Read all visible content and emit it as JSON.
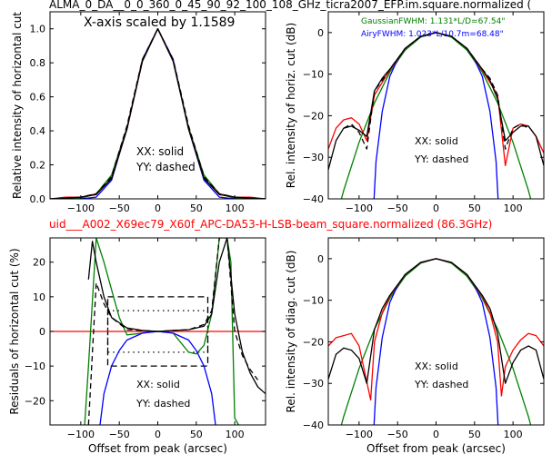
{
  "figure": {
    "top_title": "ALMA_0_DA__0_0_360_0_45_90_92_100_108_GHz_ticra2007_EFP.im.square.normalized (",
    "mid_title": "uid___A002_X69ec79_X60f_APC-DA53-H-LSB-beam_square.normalized (86.3GHz)",
    "mid_title_color": "#ff0000"
  },
  "chart_data": [
    {
      "type": "line",
      "panel": "top-left",
      "xlabel": "",
      "ylabel": "Relative intensity of horizontal cut",
      "xlim": [
        -140,
        140
      ],
      "ylim": [
        0,
        1.1
      ],
      "xticks": [
        -100,
        -50,
        0,
        50,
        100
      ],
      "yticks": [
        0.0,
        0.2,
        0.4,
        0.6,
        0.8,
        1.0
      ],
      "annotations": [
        "X-axis scaled by 1.1589",
        "XX: solid",
        "YY: dashed"
      ],
      "series": [
        {
          "color": "#008000",
          "style": "solid",
          "x": [
            -140,
            -120,
            -100,
            -80,
            -60,
            -40,
            -20,
            0,
            20,
            40,
            60,
            80,
            100,
            120,
            140
          ],
          "y": [
            0.0,
            0.0,
            0.003,
            0.03,
            0.14,
            0.42,
            0.81,
            1.0,
            0.81,
            0.42,
            0.14,
            0.03,
            0.003,
            0.0,
            0.0
          ]
        },
        {
          "color": "#0000ff",
          "style": "solid",
          "x": [
            -140,
            -120,
            -100,
            -80,
            -60,
            -40,
            -20,
            0,
            20,
            40,
            60,
            80,
            100,
            120,
            140
          ],
          "y": [
            0.0,
            0.0,
            0.0,
            0.01,
            0.11,
            0.41,
            0.82,
            1.0,
            0.82,
            0.41,
            0.11,
            0.01,
            0.0,
            0.0,
            0.0
          ]
        },
        {
          "color": "#ff0000",
          "style": "solid",
          "x": [
            -140,
            -120,
            -100,
            -80,
            -60,
            -40,
            -20,
            0,
            20,
            40,
            60,
            80,
            100,
            120,
            140
          ],
          "y": [
            0.0,
            0.01,
            0.01,
            0.03,
            0.12,
            0.41,
            0.81,
            1.0,
            0.81,
            0.41,
            0.12,
            0.03,
            0.01,
            0.01,
            0.0
          ]
        },
        {
          "color": "#000000",
          "style": "solid",
          "x": [
            -140,
            -120,
            -100,
            -80,
            -60,
            -40,
            -20,
            0,
            20,
            40,
            60,
            80,
            100,
            120,
            140
          ],
          "y": [
            0.0,
            0.005,
            0.01,
            0.025,
            0.12,
            0.41,
            0.81,
            1.0,
            0.81,
            0.41,
            0.12,
            0.025,
            0.01,
            0.005,
            0.0
          ]
        },
        {
          "color": "#000000",
          "style": "dashed",
          "x": [
            -140,
            -120,
            -100,
            -80,
            -60,
            -40,
            -20,
            0,
            20,
            40,
            60,
            80,
            100,
            120,
            140
          ],
          "y": [
            0.0,
            0.005,
            0.01,
            0.03,
            0.13,
            0.43,
            0.82,
            1.0,
            0.82,
            0.43,
            0.13,
            0.03,
            0.01,
            0.005,
            0.0
          ]
        }
      ]
    },
    {
      "type": "line",
      "panel": "top-right",
      "xlabel": "",
      "ylabel": "Rel. intensity of horiz. cut (dB)",
      "xlim": [
        -140,
        140
      ],
      "ylim": [
        -40,
        5
      ],
      "xticks": [
        -100,
        -50,
        0,
        50,
        100
      ],
      "yticks": [
        0,
        -10,
        -20,
        -30,
        -40
      ],
      "annotations": [
        "XX: solid",
        "YY: dashed"
      ],
      "legend": [
        {
          "text": "GaussianFWHM: 1.131*L/D=67.54\"",
          "color": "#008000"
        },
        {
          "text": "AiryFWHM: 1.023*L/10.7m=68.48\"",
          "color": "#0000ff"
        }
      ],
      "series": [
        {
          "color": "#008000",
          "style": "solid",
          "x": [
            -140,
            -120,
            -100,
            -80,
            -60,
            -40,
            -20,
            0,
            20,
            40,
            60,
            80,
            100,
            120,
            140
          ],
          "y": [
            -51.7,
            -38,
            -26.4,
            -16.9,
            -9.5,
            -4.2,
            -1.1,
            0,
            -1.1,
            -4.2,
            -9.5,
            -16.9,
            -26.4,
            -38,
            -51.7
          ]
        },
        {
          "color": "#0000ff",
          "style": "solid",
          "x": [
            -82,
            -78,
            -70,
            -60,
            -50,
            -40,
            -20,
            0,
            20,
            40,
            50,
            60,
            70,
            78,
            82
          ],
          "y": [
            -45,
            -31,
            -19,
            -10.5,
            -6.5,
            -3.8,
            -0.9,
            0,
            -0.9,
            -3.8,
            -6.5,
            -10.5,
            -19,
            -31,
            -45
          ]
        },
        {
          "color": "#ff0000",
          "style": "solid",
          "x": [
            -140,
            -130,
            -120,
            -110,
            -100,
            -90,
            -80,
            -70,
            -60,
            -40,
            -20,
            0,
            20,
            40,
            60,
            70,
            80,
            90,
            100,
            110,
            120,
            130,
            140
          ],
          "y": [
            -28,
            -23,
            -21,
            -20.5,
            -22,
            -26,
            -15,
            -12,
            -9,
            -3.8,
            -0.9,
            0,
            -0.9,
            -3.8,
            -9,
            -12,
            -15,
            -32,
            -23,
            -22,
            -22.5,
            -25,
            -29
          ]
        },
        {
          "color": "#000000",
          "style": "solid",
          "x": [
            -140,
            -130,
            -120,
            -110,
            -100,
            -90,
            -80,
            -70,
            -60,
            -40,
            -20,
            0,
            20,
            40,
            60,
            70,
            80,
            90,
            100,
            110,
            120,
            130,
            140
          ],
          "y": [
            -33,
            -26,
            -23,
            -22.5,
            -23.5,
            -25,
            -14,
            -11,
            -8.8,
            -3.8,
            -0.9,
            0,
            -0.9,
            -3.8,
            -8.8,
            -11.5,
            -16,
            -26,
            -24,
            -22.5,
            -22.5,
            -25,
            -32
          ]
        },
        {
          "color": "#000000",
          "style": "dashed",
          "x": [
            -120,
            -110,
            -100,
            -90,
            -80,
            -70,
            -60,
            -40,
            -20,
            0,
            20,
            40,
            60,
            70,
            80,
            90,
            100,
            110,
            120
          ],
          "y": [
            -23,
            -22,
            -24,
            -28,
            -14,
            -11.5,
            -8.8,
            -3.8,
            -0.9,
            0,
            -0.9,
            -3.8,
            -8.8,
            -11,
            -15,
            -28,
            -23,
            -22,
            -23
          ]
        }
      ]
    },
    {
      "type": "line",
      "panel": "bottom-left",
      "xlabel": "Offset from peak (arcsec)",
      "ylabel": "Residuals of horizontal cut (%)",
      "xlim": [
        -140,
        140
      ],
      "ylim": [
        -27,
        27
      ],
      "xticks": [
        -100,
        -50,
        0,
        50,
        100
      ],
      "yticks": [
        20,
        10,
        0,
        -10,
        -20
      ],
      "annotations": [
        "XX: solid",
        "YY: dashed"
      ],
      "series": [
        {
          "color": "#ff0000",
          "style": "solid",
          "x": [
            -140,
            140
          ],
          "y": [
            0,
            0
          ]
        },
        {
          "color": "#008000",
          "style": "solid",
          "x": [
            -95,
            -90,
            -80,
            -70,
            -60,
            -50,
            -40,
            -20,
            0,
            20,
            40,
            50,
            60,
            70,
            80,
            90,
            95,
            100,
            105
          ],
          "y": [
            -27,
            -10,
            27,
            20,
            12,
            4,
            -1,
            -0.5,
            0,
            -0.5,
            -6,
            -6.5,
            -4,
            5,
            27,
            27,
            20,
            -25,
            -27
          ]
        },
        {
          "color": "#0000ff",
          "style": "solid",
          "x": [
            -75,
            -70,
            -60,
            -50,
            -40,
            -20,
            0,
            20,
            40,
            50,
            60,
            70,
            75
          ],
          "y": [
            -27,
            -18,
            -10,
            -5.5,
            -2.5,
            -0.5,
            0,
            -0.5,
            -2.5,
            -5.5,
            -10,
            -18,
            -27
          ]
        },
        {
          "color": "#000000",
          "style": "solid",
          "x": [
            -90,
            -85,
            -80,
            -70,
            -60,
            -40,
            -20,
            0,
            20,
            40,
            60,
            70,
            80,
            90,
            100,
            110,
            120,
            130,
            140
          ],
          "y": [
            15,
            26,
            20,
            10,
            4,
            1,
            0.3,
            0,
            0.3,
            0.5,
            1.5,
            5,
            20,
            27,
            5,
            -6,
            -12,
            -16,
            -18
          ]
        },
        {
          "color": "#000000",
          "style": "dashed",
          "x": [
            -90,
            -80,
            -70,
            -60,
            -40,
            -20,
            0,
            20,
            40,
            60,
            70,
            80,
            90,
            100,
            110,
            120,
            130
          ],
          "y": [
            -27,
            14,
            8,
            4,
            0.5,
            0.3,
            0,
            0.3,
            0.5,
            2,
            6,
            27,
            27,
            0,
            -7,
            -11,
            -14
          ]
        }
      ]
    },
    {
      "type": "line",
      "panel": "bottom-right",
      "xlabel": "Offset from peak (arcsec)",
      "ylabel": "Rel. intensity of diag. cut (dB)",
      "xlim": [
        -140,
        140
      ],
      "ylim": [
        -40,
        5
      ],
      "xticks": [
        -100,
        -50,
        0,
        50,
        100
      ],
      "yticks": [
        0,
        -10,
        -20,
        -30,
        -40
      ],
      "annotations": [
        "XX: solid",
        "YY: dashed"
      ],
      "series": [
        {
          "color": "#008000",
          "style": "solid",
          "x": [
            -140,
            -120,
            -100,
            -80,
            -60,
            -40,
            -20,
            0,
            20,
            40,
            60,
            80,
            100,
            120,
            140
          ],
          "y": [
            -51.7,
            -38,
            -26.4,
            -16.9,
            -9.5,
            -4.2,
            -1.1,
            0,
            -1.1,
            -4.2,
            -9.5,
            -16.9,
            -26.4,
            -38,
            -51.7
          ]
        },
        {
          "color": "#0000ff",
          "style": "solid",
          "x": [
            -82,
            -78,
            -70,
            -60,
            -50,
            -40,
            -20,
            0,
            20,
            40,
            50,
            60,
            70,
            78,
            82
          ],
          "y": [
            -45,
            -31,
            -19,
            -10.5,
            -6.5,
            -3.8,
            -0.9,
            0,
            -0.9,
            -3.8,
            -6.5,
            -10.5,
            -19,
            -31,
            -45
          ]
        },
        {
          "color": "#ff0000",
          "style": "solid",
          "x": [
            -140,
            -130,
            -120,
            -110,
            -100,
            -85,
            -80,
            -70,
            -60,
            -40,
            -20,
            0,
            20,
            40,
            60,
            70,
            80,
            85,
            90,
            100,
            110,
            120,
            130,
            140
          ],
          "y": [
            -21,
            -19,
            -18.5,
            -18,
            -21,
            -34,
            -20,
            -13,
            -9,
            -3.8,
            -0.9,
            0,
            -0.9,
            -3.8,
            -9,
            -13,
            -20,
            -33,
            -26,
            -22,
            -19.5,
            -18,
            -18.5,
            -21
          ]
        },
        {
          "color": "#000000",
          "style": "solid",
          "x": [
            -140,
            -130,
            -120,
            -110,
            -100,
            -90,
            -80,
            -70,
            -60,
            -40,
            -20,
            0,
            20,
            40,
            60,
            70,
            80,
            90,
            100,
            110,
            120,
            130,
            140
          ],
          "y": [
            -29,
            -23,
            -21.5,
            -22,
            -24,
            -30,
            -17,
            -12,
            -8.8,
            -3.8,
            -0.9,
            0,
            -0.9,
            -3.8,
            -8.8,
            -12,
            -18,
            -30,
            -25,
            -22,
            -21,
            -22,
            -29
          ]
        }
      ]
    }
  ]
}
